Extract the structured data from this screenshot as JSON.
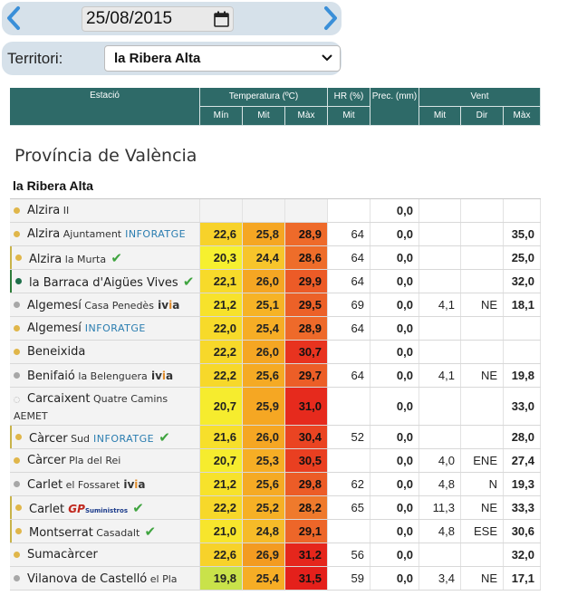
{
  "date_nav": {
    "prev_icon": "chevron-left-icon",
    "next_icon": "chevron-right-icon",
    "date_value": "25/08/2015",
    "calendar_icon": "calendar-icon"
  },
  "territory": {
    "label": "Territori:",
    "selected": "la Ribera Alta"
  },
  "table_header": {
    "station": "Estació",
    "temperature": "Temperatura (ºC)",
    "humidity": "HR (%)",
    "precipitation": "Prec. (mm)",
    "wind": "Vent",
    "t_min": "Mín",
    "t_mit": "Mit",
    "t_max": "Màx",
    "hr_mit": "Mit",
    "w_mit": "Mit",
    "w_dir": "Dir",
    "w_max": "Màx"
  },
  "province": "Província de València",
  "region": "la Ribera Alta",
  "colors": {
    "header_bg": "#2e6a68",
    "dot_yellow": "#e0b64a",
    "dot_green": "#1f6f4a",
    "dot_grey": "#a7a7a7",
    "check": "#3fa43f"
  },
  "rows": [
    {
      "name": "Alzira",
      "sub": "II",
      "network": "",
      "check": "",
      "dot": "yellow",
      "bar": "",
      "tmin": "",
      "tmit": "",
      "tmax": "",
      "hr": "",
      "prec": "0,0",
      "wmit": "",
      "wdir": "",
      "wmax": "",
      "cmin": "#f3f3f3",
      "cmit": "#f3f3f3",
      "cmax": "#f3f3f3"
    },
    {
      "name": "Alzira",
      "sub": "Ajuntament",
      "network": "INFORATGE",
      "check": "",
      "dot": "yellow",
      "bar": "",
      "tmin": "22,6",
      "tmit": "25,8",
      "tmax": "28,9",
      "hr": "64",
      "prec": "0,0",
      "wmit": "",
      "wdir": "",
      "wmax": "35,0",
      "cmin": "#f7d22a",
      "cmit": "#f5a623",
      "cmax": "#ee6a2a"
    },
    {
      "name": "Alzira",
      "sub": "la Murta",
      "network": "",
      "check": "✔",
      "dot": "yellow",
      "bar": "bar",
      "tmin": "20,3",
      "tmit": "24,4",
      "tmax": "28,6",
      "hr": "64",
      "prec": "0,0",
      "wmit": "",
      "wdir": "",
      "wmax": "25,0",
      "cmin": "#f6f02f",
      "cmit": "#f7c52b",
      "cmax": "#ee6d2a"
    },
    {
      "name": "la Barraca d'Aigües Vives",
      "sub": "",
      "network": "",
      "check": "✔",
      "dot": "green",
      "bar": "barg",
      "tmin": "22,1",
      "tmit": "26,0",
      "tmax": "29,9",
      "hr": "64",
      "prec": "0,0",
      "wmit": "",
      "wdir": "",
      "wmax": "32,0",
      "cmin": "#f7da2a",
      "cmit": "#f5a623",
      "cmax": "#ec5b27"
    },
    {
      "name": "Algemesí",
      "sub": "Casa Penedès",
      "network": "ivia",
      "check": "",
      "dot": "grey",
      "bar": "",
      "tmin": "21,2",
      "tmit": "25,1",
      "tmax": "29,5",
      "hr": "69",
      "prec": "0,0",
      "wmit": "4,1",
      "wdir": "NE",
      "wmax": "18,1",
      "cmin": "#f7e22b",
      "cmit": "#f6b326",
      "cmax": "#ec6128"
    },
    {
      "name": "Algemesí",
      "sub": "",
      "network": "INFORATGE",
      "check": "",
      "dot": "yellow",
      "bar": "",
      "tmin": "22,0",
      "tmit": "25,4",
      "tmax": "28,9",
      "hr": "64",
      "prec": "0,0",
      "wmit": "",
      "wdir": "",
      "wmax": "",
      "cmin": "#f7da2a",
      "cmit": "#f6ad25",
      "cmax": "#ee6a2a"
    },
    {
      "name": "Beneixida",
      "sub": "",
      "network": "",
      "check": "",
      "dot": "yellow",
      "bar": "",
      "tmin": "22,2",
      "tmit": "26,0",
      "tmax": "30,7",
      "hr": "",
      "prec": "0,0",
      "wmit": "",
      "wdir": "",
      "wmax": "",
      "cmin": "#f7d82a",
      "cmit": "#f5a623",
      "cmax": "#e8331f"
    },
    {
      "name": "Benifaió",
      "sub": "la Belenguera",
      "network": "ivia",
      "check": "",
      "dot": "grey",
      "bar": "",
      "tmin": "22,2",
      "tmit": "25,6",
      "tmax": "29,7",
      "hr": "64",
      "prec": "0,0",
      "wmit": "4,1",
      "wdir": "NE",
      "wmax": "19,8",
      "cmin": "#f7d82a",
      "cmit": "#f5aa24",
      "cmax": "#ec5e27"
    },
    {
      "name": "Carcaixent",
      "sub": "Quatre Camins",
      "network": "AEMET",
      "check": "",
      "dot": "empty",
      "bar": "",
      "tmin": "20,7",
      "tmit": "25,9",
      "tmax": "31,0",
      "hr": "",
      "prec": "0,0",
      "wmit": "",
      "wdir": "",
      "wmax": "33,0",
      "cmin": "#f6ec2e",
      "cmit": "#f5a723",
      "cmax": "#e62a1d"
    },
    {
      "name": "Càrcer",
      "sub": "Sud",
      "network": "INFORATGE",
      "check": "✔",
      "dot": "yellow",
      "bar": "bar",
      "tmin": "21,6",
      "tmit": "26,0",
      "tmax": "30,4",
      "hr": "52",
      "prec": "0,0",
      "wmit": "",
      "wdir": "",
      "wmax": "28,0",
      "cmin": "#f7df2b",
      "cmit": "#f5a623",
      "cmax": "#ea4422"
    },
    {
      "name": "Càrcer",
      "sub": "Pla del Rei",
      "network": "",
      "check": "",
      "dot": "yellow",
      "bar": "",
      "tmin": "20,7",
      "tmit": "25,3",
      "tmax": "30,5",
      "hr": "",
      "prec": "0,0",
      "wmit": "4,0",
      "wdir": "ENE",
      "wmax": "27,4",
      "cmin": "#f6ec2e",
      "cmit": "#f6ae25",
      "cmax": "#e93f21"
    },
    {
      "name": "Carlet",
      "sub": "el Fossaret",
      "network": "ivia",
      "check": "",
      "dot": "grey",
      "bar": "",
      "tmin": "21,2",
      "tmit": "25,6",
      "tmax": "29,8",
      "hr": "62",
      "prec": "0,0",
      "wmit": "4,8",
      "wdir": "N",
      "wmax": "19,3",
      "cmin": "#f7e22b",
      "cmit": "#f5aa24",
      "cmax": "#ec5c27"
    },
    {
      "name": "Carlet",
      "sub": "",
      "network": "GP",
      "check": "✔",
      "dot": "yellow",
      "bar": "bar",
      "tmin": "22,2",
      "tmit": "25,2",
      "tmax": "28,2",
      "hr": "65",
      "prec": "0,0",
      "wmit": "11,3",
      "wdir": "NE",
      "wmax": "33,3",
      "cmin": "#f7d82a",
      "cmit": "#f6b025",
      "cmax": "#ef7a2c"
    },
    {
      "name": "Montserrat",
      "sub": "Casadalt",
      "network": "",
      "check": "✔",
      "dot": "yellow",
      "bar": "bar",
      "tmin": "21,0",
      "tmit": "24,8",
      "tmax": "29,1",
      "hr": "",
      "prec": "0,0",
      "wmit": "4,8",
      "wdir": "ESE",
      "wmax": "30,6",
      "cmin": "#f7e52c",
      "cmit": "#f6bb28",
      "cmax": "#ed6629"
    },
    {
      "name": "Sumacàrcer",
      "sub": "",
      "network": "",
      "check": "",
      "dot": "yellow",
      "bar": "",
      "tmin": "22,6",
      "tmit": "26,9",
      "tmax": "31,2",
      "hr": "56",
      "prec": "0,0",
      "wmit": "",
      "wdir": "",
      "wmax": "32,0",
      "cmin": "#f7d22a",
      "cmit": "#f39b21",
      "cmax": "#e5261c"
    },
    {
      "name": "Vilanova de Castelló",
      "sub": "el Pla",
      "network": "ivia",
      "check": "",
      "dot": "grey",
      "bar": "",
      "tmin": "19,8",
      "tmit": "25,4",
      "tmax": "31,5",
      "hr": "59",
      "prec": "0,0",
      "wmit": "3,4",
      "wdir": "NE",
      "wmax": "17,1",
      "cmin": "#c9e24a",
      "cmit": "#f6ad25",
      "cmax": "#e4201b"
    }
  ]
}
